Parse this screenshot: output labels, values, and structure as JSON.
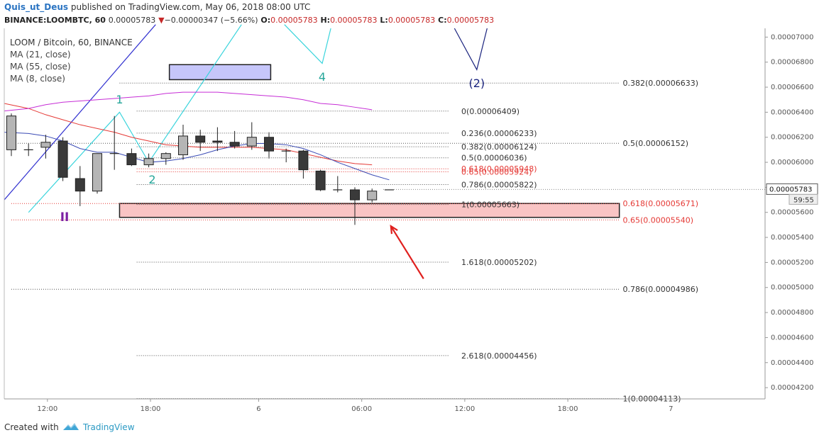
{
  "header": {
    "author": "Quis_ut_Deus",
    "published_text": "published on TradingView.com, May 06, 2018 08:00 UTC",
    "symbol_line": "BINANCE:LOOMBTC, 60",
    "last_price": "0.00005783",
    "change_arrow": "▼",
    "change": "−0.00000347 (−5.66%)",
    "o_label": "O:",
    "o_value": "0.00005783",
    "h_label": "H:",
    "h_value": "0.00005783",
    "l_label": "L:",
    "l_value": "0.00005783",
    "c_label": "C:",
    "c_value": "0.00005783"
  },
  "legend": {
    "title": "LOOM / Bitcoin, 60, BINANCE",
    "ma21": "MA (21, close)",
    "ma55": "MA (55, close)",
    "ma8": "MA (8, close)"
  },
  "footer": {
    "created_with": "Created with",
    "brand": "TradingView"
  },
  "colors": {
    "up_candle": "#b5b5b5",
    "down_candle": "#3a3a3a",
    "ma21": "#e53935",
    "ma55": "#c62dd6",
    "ma8": "#3a4bb5",
    "wave_cyan": "#38d4dc",
    "wave_blue": "#1a237e",
    "trend_line": "#3232d0",
    "fib_red": "#e53935",
    "zone_fill": "#f9c4c4",
    "target_box": "#c6c6fa",
    "arrow": "#e0201e",
    "roman_label": "#7b1fa2",
    "count_label": "#26a69a"
  },
  "chart_data": {
    "type": "candlestick",
    "title": "LOOM / Bitcoin, 60, BINANCE",
    "ylim": [
      4.11e-05,
      7.07e-05
    ],
    "y_ticks": [
      "0.00004200",
      "0.00004400",
      "0.00004600",
      "0.00004800",
      "0.00005000",
      "0.00005200",
      "0.00005400",
      "0.00005600",
      "0.00005800",
      "0.00006000",
      "0.00006200",
      "0.00006400",
      "0.00006600",
      "0.00006800",
      "0.00007000"
    ],
    "x_tick_labels": [
      "12:00",
      "18:00",
      "6",
      "06:00",
      "12:00",
      "18:00",
      "7"
    ],
    "current_price_label": "0.00005783",
    "countdown_label": "59:55",
    "candles": [
      {
        "o": 6.1e-05,
        "h": 6.39e-05,
        "l": 6.05e-05,
        "c": 6.37e-05
      },
      {
        "o": 6.1e-05,
        "h": 6.15e-05,
        "l": 6.05e-05,
        "c": 6.1e-05
      },
      {
        "o": 6.12e-05,
        "h": 6.22e-05,
        "l": 6.03e-05,
        "c": 6.16e-05
      },
      {
        "o": 6.17e-05,
        "h": 6.2e-05,
        "l": 5.85e-05,
        "c": 5.88e-05
      },
      {
        "o": 5.87e-05,
        "h": 5.97e-05,
        "l": 5.65e-05,
        "c": 5.77e-05
      },
      {
        "o": 5.77e-05,
        "h": 6.06e-05,
        "l": 5.75e-05,
        "c": 6.07e-05
      },
      {
        "o": 6.07e-05,
        "h": 6.37e-05,
        "l": 5.94e-05,
        "c": 6.07e-05
      },
      {
        "o": 6.07e-05,
        "h": 6.11e-05,
        "l": 5.97e-05,
        "c": 5.98e-05
      },
      {
        "o": 5.98e-05,
        "h": 6.07e-05,
        "l": 5.96e-05,
        "c": 6.03e-05
      },
      {
        "o": 6.03e-05,
        "h": 6.08e-05,
        "l": 5.98e-05,
        "c": 6.07e-05
      },
      {
        "o": 6.06e-05,
        "h": 6.3e-05,
        "l": 6.02e-05,
        "c": 6.21e-05
      },
      {
        "o": 6.21e-05,
        "h": 6.26e-05,
        "l": 6.09e-05,
        "c": 6.16e-05
      },
      {
        "o": 6.17e-05,
        "h": 6.28e-05,
        "l": 6.09e-05,
        "c": 6.16e-05
      },
      {
        "o": 6.16e-05,
        "h": 6.25e-05,
        "l": 6.11e-05,
        "c": 6.13e-05
      },
      {
        "o": 6.13e-05,
        "h": 6.32e-05,
        "l": 6.1e-05,
        "c": 6.2e-05
      },
      {
        "o": 6.2e-05,
        "h": 6.24e-05,
        "l": 6.03e-05,
        "c": 6.09e-05
      },
      {
        "o": 6.09e-05,
        "h": 6.11e-05,
        "l": 6e-05,
        "c": 6.09e-05
      },
      {
        "o": 6.09e-05,
        "h": 6.1e-05,
        "l": 5.87e-05,
        "c": 5.94e-05
      },
      {
        "o": 5.93e-05,
        "h": 5.94e-05,
        "l": 5.77e-05,
        "c": 5.78e-05
      },
      {
        "o": 5.78e-05,
        "h": 5.89e-05,
        "l": 5.76e-05,
        "c": 5.78e-05
      },
      {
        "o": 5.78e-05,
        "h": 5.8e-05,
        "l": 5.5e-05,
        "c": 5.7e-05
      },
      {
        "o": 5.7e-05,
        "h": 5.79e-05,
        "l": 5.68e-05,
        "c": 5.77e-05
      },
      {
        "o": 5.78e-05,
        "h": 5.78e-05,
        "l": 5.78e-05,
        "c": 5.78e-05
      }
    ],
    "moving_averages": [
      {
        "name": "MA (21, close)",
        "values": [
          6.47e-05,
          6.43e-05,
          6.38e-05,
          6.34e-05,
          6.3e-05,
          6.27e-05,
          6.24e-05,
          6.2e-05,
          6.17e-05,
          6.14e-05,
          6.13e-05,
          6.12e-05,
          6.12e-05,
          6.12e-05,
          6.12e-05,
          6.11e-05,
          6.1e-05,
          6.07e-05,
          6.04e-05,
          6.01e-05,
          5.99e-05,
          5.98e-05,
          null
        ]
      },
      {
        "name": "MA (55, close)",
        "values": [
          6.41e-05,
          6.43e-05,
          6.46e-05,
          6.48e-05,
          6.49e-05,
          6.5e-05,
          6.51e-05,
          6.52e-05,
          6.53e-05,
          6.55e-05,
          6.56e-05,
          6.56e-05,
          6.56e-05,
          6.55e-05,
          6.54e-05,
          6.53e-05,
          6.52e-05,
          6.5e-05,
          6.47e-05,
          6.46e-05,
          6.44e-05,
          6.42e-05,
          null
        ]
      },
      {
        "name": "MA (8, close)",
        "values": [
          6.24e-05,
          6.23e-05,
          6.21e-05,
          6.17e-05,
          6.11e-05,
          6.08e-05,
          6.08e-05,
          6.04e-05,
          6e-05,
          6.01e-05,
          6.03e-05,
          6.06e-05,
          6.1e-05,
          6.13e-05,
          6.15e-05,
          6.15e-05,
          6.14e-05,
          6.11e-05,
          6.06e-05,
          6e-05,
          5.95e-05,
          5.9e-05,
          5.86e-05
        ]
      }
    ],
    "fib_levels": [
      {
        "label": "0.382(0.00006633)",
        "price": 6.633e-05,
        "color": "#333333"
      },
      {
        "label": "0(0.00006409)",
        "price": 6.409e-05,
        "color": "#333333"
      },
      {
        "label": "0.236(0.00006233)",
        "price": 6.233e-05,
        "color": "#333333"
      },
      {
        "label": "0.5(0.00006152)",
        "price": 6.152e-05,
        "color": "#333333"
      },
      {
        "label": "0.382(0.00006124)",
        "price": 6.124e-05,
        "color": "#333333"
      },
      {
        "label": "0.5(0.00006036)",
        "price": 6.036e-05,
        "color": "#333333"
      },
      {
        "label": "0.618(0.00005948)",
        "price": 5.948e-05,
        "color": "#e53935"
      },
      {
        "label": "0.65(0.00005924)",
        "price": 5.924e-05,
        "color": "#e53935"
      },
      {
        "label": "0.786(0.00005822)",
        "price": 5.822e-05,
        "color": "#333333"
      },
      {
        "label": "0.618(0.00005671)",
        "price": 5.671e-05,
        "color": "#e53935"
      },
      {
        "label": "1(0.00005663)",
        "price": 5.663e-05,
        "color": "#333333"
      },
      {
        "label": "0.65(0.00005540)",
        "price": 5.54e-05,
        "color": "#e53935"
      },
      {
        "label": "1.618(0.00005202)",
        "price": 5.202e-05,
        "color": "#333333"
      },
      {
        "label": "0.786(0.00004986)",
        "price": 4.986e-05,
        "color": "#333333"
      },
      {
        "label": "2.618(0.00004456)",
        "price": 4.456e-05,
        "color": "#333333"
      },
      {
        "label": "1(0.00004113)",
        "price": 4.113e-05,
        "color": "#333333"
      }
    ],
    "support_zone": {
      "high": 5.671e-05,
      "low": 5.56e-05
    },
    "target_zone": {
      "high": 6.78e-05,
      "low": 6.66e-05
    },
    "wave_labels": [
      "1",
      "2",
      "4",
      "(2)",
      "II"
    ],
    "annotations": [
      "red arrow pointing to support zone"
    ]
  }
}
